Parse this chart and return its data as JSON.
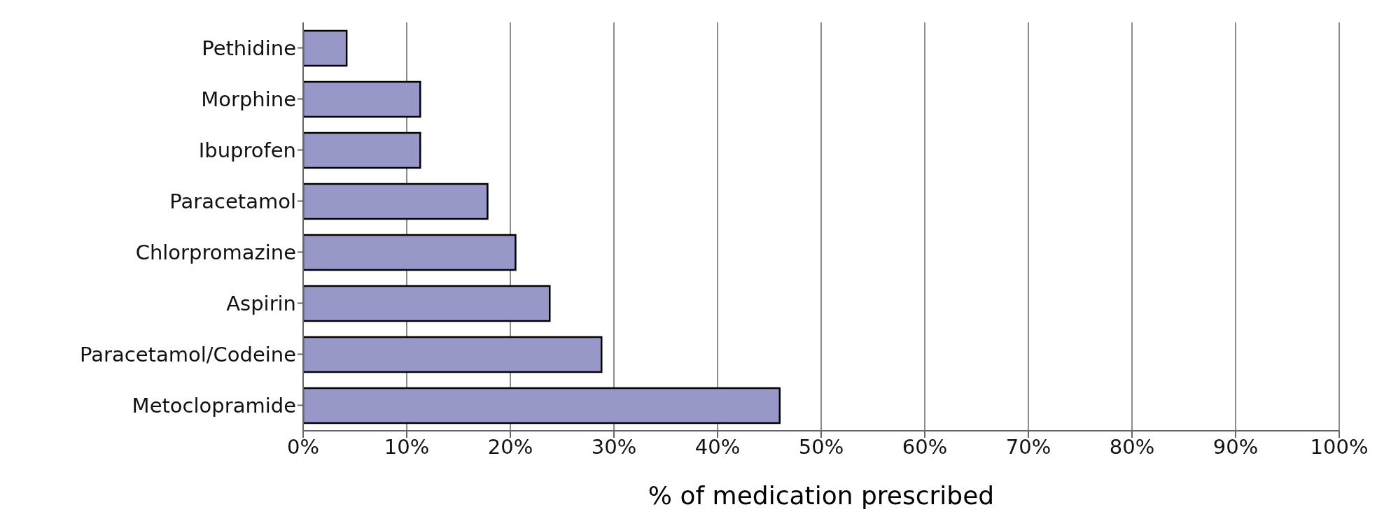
{
  "chart_data": {
    "type": "bar",
    "orientation": "horizontal",
    "xlabel": "% of medication prescribed",
    "categories": [
      "Pethidine",
      "Morphine",
      "Ibuprofen",
      "Paracetamol",
      "Chlorpromazine",
      "Aspirin",
      "Paracetamol/Codeine",
      "Metoclopramide"
    ],
    "values": [
      4.2,
      11.3,
      11.3,
      17.8,
      20.5,
      23.8,
      28.8,
      46.0
    ],
    "color": "#9898c8",
    "xlim": [
      0,
      100
    ],
    "xticks": [
      {
        "value": 0,
        "label": "0%"
      },
      {
        "value": 10,
        "label": "10%"
      },
      {
        "value": 20,
        "label": "20%"
      },
      {
        "value": 30,
        "label": "30%"
      },
      {
        "value": 40,
        "label": "40%"
      },
      {
        "value": 50,
        "label": "50%"
      },
      {
        "value": 60,
        "label": "60%"
      },
      {
        "value": 70,
        "label": "70%"
      },
      {
        "value": 80,
        "label": "80%"
      },
      {
        "value": 90,
        "label": "90%"
      },
      {
        "value": 100,
        "label": "100%"
      }
    ],
    "grid": "x",
    "legend": false
  }
}
